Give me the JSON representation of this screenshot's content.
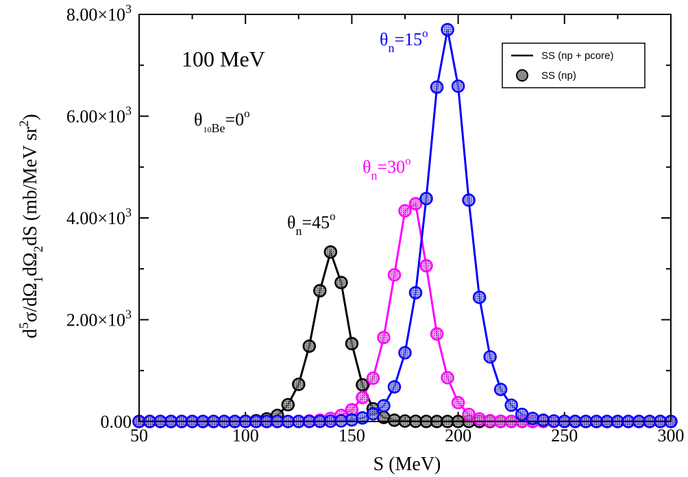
{
  "chart_data": {
    "type": "line",
    "xlabel": "S (MeV)",
    "xlim": [
      50,
      300
    ],
    "ylim": [
      0,
      8000
    ],
    "x_ticks": [
      "50",
      "100",
      "150",
      "200",
      "250",
      "300"
    ],
    "y_ticks": [
      {
        "mant": "0.00",
        "exp": ""
      },
      {
        "mant": "2.00×10",
        "exp": "3"
      },
      {
        "mant": "4.00×10",
        "exp": "3"
      },
      {
        "mant": "6.00×10",
        "exp": "3"
      },
      {
        "mant": "8.00×10",
        "exp": "3"
      }
    ],
    "ylabel_parts": {
      "d": "d",
      "sup5": "5",
      "sigma": "σ/dΩ",
      "sub1": "1",
      "dOmega": "dΩ",
      "sub2": "2",
      "dS": "dS  (mb/MeV sr",
      "sup2": "2",
      "close": ")"
    },
    "annotations": {
      "energy": "100 MeV",
      "be_theta": "θ",
      "be_sub_pre": "10",
      "be_sub": "Be",
      "be_eq": "=0",
      "be_sup": "o",
      "t15_theta": "θ",
      "t15_sub": "n",
      "t15_eq": "=15",
      "t15_sup": "o",
      "t30_theta": "θ",
      "t30_sub": "n",
      "t30_eq": "=30",
      "t30_sup": "o",
      "t45_theta": "θ",
      "t45_sub": "n",
      "t45_eq": "=45",
      "t45_sup": "o"
    },
    "legend": {
      "position": "top-right",
      "line_label": "SS (np + pcore)",
      "marker_label": "SS (np)"
    },
    "series": [
      {
        "color": "#000000",
        "x": [
          50,
          55,
          60,
          65,
          70,
          75,
          80,
          85,
          90,
          95,
          100,
          105,
          110,
          115,
          120,
          125,
          130,
          135,
          140,
          145,
          150,
          155,
          160,
          165,
          170,
          175,
          180,
          185,
          190,
          195,
          200,
          205,
          210,
          215,
          220,
          225,
          230,
          235,
          240,
          245,
          250,
          255,
          260,
          265,
          270,
          275,
          280,
          285,
          290,
          295,
          300
        ],
        "y": [
          0,
          0,
          0,
          0,
          0,
          0,
          0,
          0,
          0,
          0,
          5,
          15,
          50,
          120,
          330,
          730,
          1480,
          2570,
          3330,
          2730,
          1530,
          720,
          250,
          80,
          25,
          8,
          3,
          1,
          0,
          0,
          0,
          0,
          0,
          0,
          0,
          0,
          0,
          0,
          0,
          0,
          0,
          0,
          0,
          0,
          0,
          0,
          0,
          0,
          0,
          0,
          0
        ]
      },
      {
        "color": "#ff00ff",
        "x": [
          50,
          55,
          60,
          65,
          70,
          75,
          80,
          85,
          90,
          95,
          100,
          105,
          110,
          115,
          120,
          125,
          130,
          135,
          140,
          145,
          150,
          155,
          160,
          165,
          170,
          175,
          180,
          185,
          190,
          195,
          200,
          205,
          210,
          215,
          220,
          225,
          230,
          235,
          240,
          245,
          250,
          255,
          260,
          265,
          270,
          275,
          280,
          285,
          290,
          295,
          300
        ],
        "y": [
          0,
          0,
          0,
          0,
          0,
          0,
          0,
          0,
          0,
          0,
          0,
          0,
          0,
          0,
          0,
          3,
          10,
          25,
          60,
          120,
          230,
          470,
          850,
          1650,
          2880,
          4140,
          4280,
          3060,
          1720,
          860,
          370,
          140,
          50,
          15,
          5,
          2,
          0,
          0,
          0,
          0,
          0,
          0,
          0,
          0,
          0,
          0,
          0,
          0,
          0,
          0,
          0
        ]
      },
      {
        "color": "#0000ff",
        "x": [
          50,
          55,
          60,
          65,
          70,
          75,
          80,
          85,
          90,
          95,
          100,
          105,
          110,
          115,
          120,
          125,
          130,
          135,
          140,
          145,
          150,
          155,
          160,
          165,
          170,
          175,
          180,
          185,
          190,
          195,
          200,
          205,
          210,
          215,
          220,
          225,
          230,
          235,
          240,
          245,
          250,
          255,
          260,
          265,
          270,
          275,
          280,
          285,
          290,
          295,
          300
        ],
        "y": [
          0,
          0,
          0,
          0,
          0,
          0,
          0,
          0,
          0,
          0,
          0,
          0,
          0,
          0,
          0,
          0,
          0,
          2,
          5,
          12,
          30,
          70,
          150,
          310,
          680,
          1350,
          2530,
          4380,
          6570,
          7700,
          6590,
          4350,
          2440,
          1270,
          630,
          320,
          140,
          60,
          25,
          10,
          4,
          1,
          0,
          0,
          0,
          0,
          0,
          0,
          0,
          0,
          0
        ]
      }
    ]
  }
}
